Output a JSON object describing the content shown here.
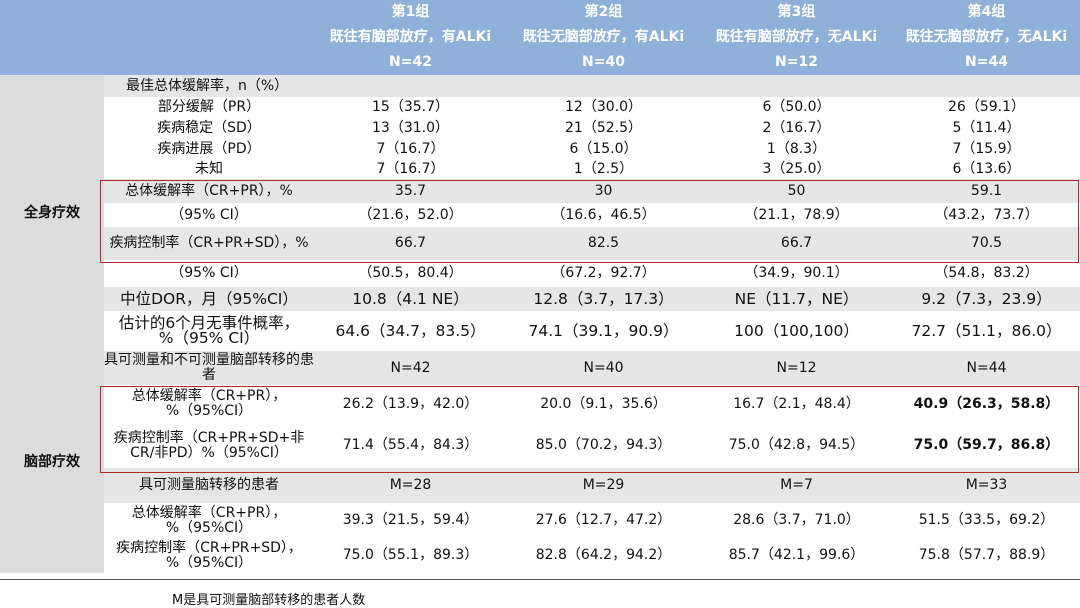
{
  "header": {
    "groups": [
      {
        "name": "第1组",
        "desc": "既往有脑部放疗，有ALKi",
        "n": "N=42"
      },
      {
        "name": "第2组",
        "desc": "既往无脑部放疗，有ALKi",
        "n": "N=40"
      },
      {
        "name": "第3组",
        "desc": "既往有脑部放疗，无ALKi",
        "n": "N=12"
      },
      {
        "name": "第4组",
        "desc": "既往无脑部放疗，无ALKi",
        "n": "N=44"
      }
    ]
  },
  "systemic": {
    "category": "全身疗效",
    "rows": [
      {
        "label": "最佳总体缓解率，n（%）",
        "values": [
          "",
          "",
          "",
          ""
        ]
      },
      {
        "label": "部分缓解（PR）",
        "values": [
          "15（35.7）",
          "12（30.0）",
          "6（50.0）",
          "26（59.1）"
        ]
      },
      {
        "label": "疾病稳定（SD）",
        "values": [
          "13（31.0）",
          "21（52.5）",
          "2（16.7）",
          "5（11.4）"
        ]
      },
      {
        "label": "疾病进展（PD）",
        "values": [
          "7（16.7）",
          "6（15.0）",
          "1（8.3）",
          "7（15.9）"
        ]
      },
      {
        "label": "未知",
        "values": [
          "7（16.7）",
          "1（2.5）",
          "3（25.0）",
          "6（13.6）"
        ]
      },
      {
        "label": "总体缓解率（CR+PR），%",
        "values": [
          "35.7",
          "30",
          "50",
          "59.1"
        ]
      },
      {
        "label": "（95% CI）",
        "values": [
          "（21.6，52.0）",
          "（16.6，46.5）",
          "（21.1，78.9）",
          "（43.2，73.7）"
        ]
      },
      {
        "label": "疾病控制率（CR+PR+SD），%",
        "values": [
          "66.7",
          "82.5",
          "66.7",
          "70.5"
        ]
      },
      {
        "label": "（95% CI）",
        "values": [
          "（50.5，80.4）",
          "（67.2，92.7）",
          "（34.9，90.1）",
          "（54.8，83.2）"
        ]
      },
      {
        "label": "中位DOR，月（95%CI）",
        "values": [
          "10.8（4.1 NE）",
          "12.8（3.7，17.3）",
          "NE（11.7，NE）",
          "9.2（7.3，23.9）"
        ]
      },
      {
        "label": "估计的6个月无事件概率，%（95% CI）",
        "values": [
          "64.6（34.7，83.5）",
          "74.1（39.1，90.9）",
          "100（100,100）",
          "72.7（51.1，86.0）"
        ]
      }
    ]
  },
  "brain": {
    "category": "脑部疗效",
    "rows": [
      {
        "label": "具可测量和不可测量脑部转移的患者",
        "values": [
          "N=42",
          "N=40",
          "N=12",
          "N=44"
        ]
      },
      {
        "label": "总体缓解率（CR+PR），%（95%CI）",
        "values": [
          "26.2（13.9，42.0）",
          "20.0（9.1，35.6）",
          "16.7（2.1，48.4）",
          "40.9（26.3，58.8）"
        ]
      },
      {
        "label": "疾病控制率（CR+PR+SD+非CR/非PD）%（95%CI）",
        "values": [
          "71.4（55.4，84.3）",
          "85.0（70.2，94.3）",
          "75.0（42.8，94.5）",
          "75.0（59.7，86.8）"
        ]
      },
      {
        "label": "具可测量脑转移的患者",
        "values": [
          "M=28",
          "M=29",
          "M=7",
          "M=33"
        ]
      },
      {
        "label": "总体缓解率（CR+PR），%（95%CI）",
        "values": [
          "39.3（21.5，59.4）",
          "27.6（12.7，47.2）",
          "28.6（3.7，71.0）",
          "51.5（33.5，69.2）"
        ]
      },
      {
        "label": "疾病控制率（CR+PR+SD），%（95%CI）",
        "values": [
          "75.0（55.1，89.3）",
          "82.8（64.2，94.2）",
          "85.7（42.1，99.6）",
          "75.8（57.7，88.9）"
        ]
      }
    ]
  },
  "footnote": "M是具可测量脑部转移的患者人数",
  "colors": {
    "header_bg": "#8fb0d8",
    "category_bg": "#dcdcdc",
    "stripe_bg": "#e6e6e6",
    "highlight_border": "#b02a2a"
  }
}
